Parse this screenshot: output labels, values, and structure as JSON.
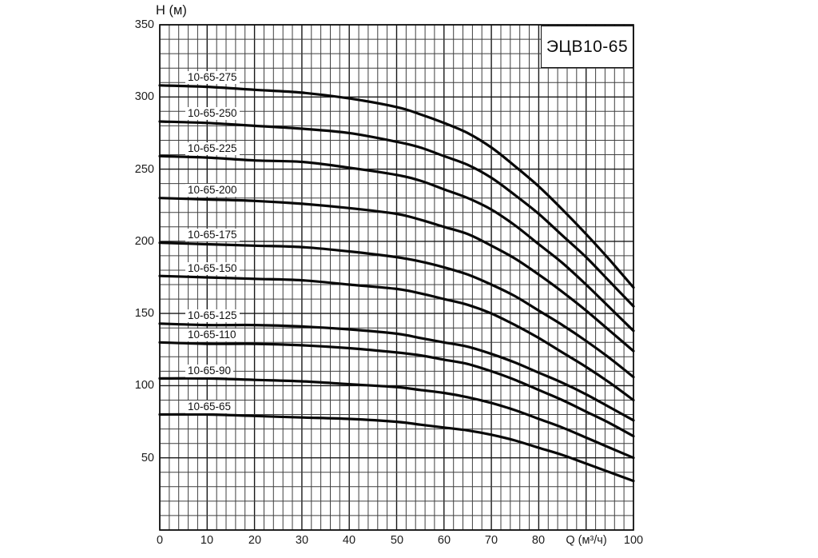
{
  "header": {
    "title_box_label": "ЭЦВ10-65"
  },
  "axes": {
    "y_title": "H (м)",
    "x_unit_label": "Q (м³/ч)",
    "y_ticks": [
      350,
      300,
      250,
      200,
      150,
      100,
      50
    ],
    "x_tick_labels": [
      "0",
      "10",
      "20",
      "30",
      "40",
      "50",
      "60",
      "70",
      "80",
      "Q (м³/ч)",
      "100"
    ]
  },
  "chart_data": {
    "type": "line",
    "title": "ЭЦВ10-65",
    "xlabel": "Q (м³/ч)",
    "ylabel": "H (м)",
    "xlim": [
      0,
      100
    ],
    "ylim": [
      0,
      350
    ],
    "x_minor_grid_step": 2,
    "x_major_grid_step": 10,
    "y_minor_grid_step": 10,
    "y_major_grid_step": 50,
    "grid": "minor and major grid on both axes",
    "legend_position": "inline labels above each curve near left edge",
    "x": [
      0,
      10,
      20,
      30,
      40,
      50,
      55,
      60,
      65,
      70,
      75,
      80,
      85,
      90,
      95,
      100
    ],
    "series": [
      {
        "name": "10-65-275",
        "values": [
          308,
          307,
          305,
          303,
          299,
          293,
          288,
          282,
          275,
          265,
          252,
          238,
          222,
          205,
          187,
          168
        ]
      },
      {
        "name": "10-65-250",
        "values": [
          283,
          282,
          280,
          278,
          275,
          269,
          265,
          259,
          253,
          244,
          232,
          219,
          204,
          189,
          172,
          155
        ]
      },
      {
        "name": "10-65-225",
        "values": [
          259,
          258,
          256,
          255,
          251,
          246,
          242,
          236,
          230,
          222,
          211,
          198,
          185,
          170,
          154,
          138
        ]
      },
      {
        "name": "10-65-200",
        "values": [
          230,
          229,
          228,
          226,
          223,
          219,
          215,
          210,
          205,
          197,
          188,
          177,
          165,
          152,
          138,
          124
        ]
      },
      {
        "name": "10-65-175",
        "values": [
          199,
          198,
          197,
          196,
          193,
          189,
          186,
          182,
          177,
          170,
          162,
          152,
          142,
          131,
          119,
          106
        ]
      },
      {
        "name": "10-65-150",
        "values": [
          176,
          175,
          174,
          173,
          170,
          167,
          164,
          160,
          156,
          150,
          142,
          133,
          123,
          113,
          102,
          90
        ]
      },
      {
        "name": "10-65-125",
        "values": [
          143,
          142,
          142,
          141,
          139,
          136,
          133,
          130,
          127,
          122,
          116,
          109,
          102,
          94,
          85,
          76
        ]
      },
      {
        "name": "10-65-110",
        "values": [
          130,
          129,
          129,
          128,
          126,
          123,
          121,
          118,
          115,
          110,
          104,
          97,
          90,
          82,
          74,
          65
        ]
      },
      {
        "name": "10-65-90",
        "values": [
          105,
          105,
          104,
          103,
          101,
          99,
          97,
          95,
          92,
          88,
          83,
          77,
          71,
          64,
          57,
          50
        ]
      },
      {
        "name": "10-65-65",
        "values": [
          80,
          80,
          79,
          78,
          77,
          75,
          73,
          71,
          69,
          66,
          62,
          57,
          52,
          46,
          40,
          34
        ]
      }
    ],
    "colors": {
      "curve": "#080808",
      "grid_minor": "#3f3f3f",
      "grid_major": "#181818",
      "frame": "#101010",
      "background": "#ffffff"
    }
  }
}
